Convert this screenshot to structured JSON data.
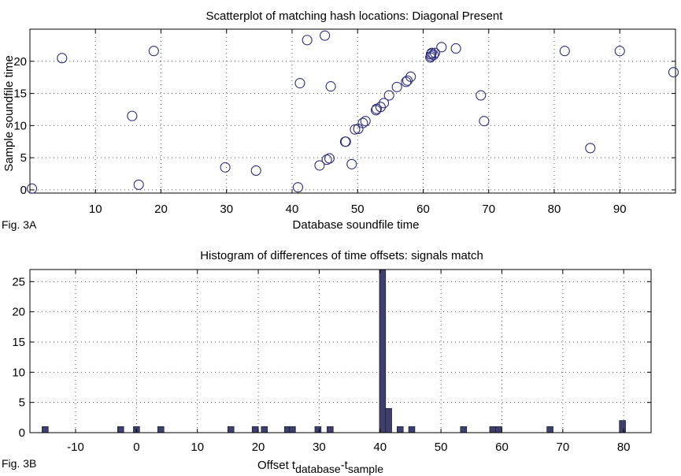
{
  "figure": {
    "scatter_fig_label": "Fig. 3A",
    "histogram_fig_label": "Fig. 3B"
  },
  "chart_data": [
    {
      "type": "scatter",
      "title": "Scatterplot of matching hash locations:  Diagonal Present",
      "xlabel": "Database soundfile time",
      "ylabel": "Sample soundfile time",
      "xlim": [
        0,
        98.5
      ],
      "ylim": [
        -0.5,
        25
      ],
      "xticks": [
        10,
        20,
        30,
        40,
        50,
        60,
        70,
        80,
        90
      ],
      "yticks": [
        0,
        5,
        10,
        15,
        20
      ],
      "grid": true,
      "marker": "open-circle",
      "color": "#2b2b7a",
      "x": [
        0.3,
        4.9,
        15.6,
        16.6,
        18.9,
        29.8,
        34.5,
        40.9,
        41.2,
        42.3,
        44.2,
        45.0,
        45.3,
        45.7,
        45.9,
        48.1,
        48.2,
        49.1,
        49.6,
        50.1,
        50.8,
        51.2,
        52.8,
        52.9,
        53.5,
        54.0,
        54.8,
        56.0,
        57.4,
        57.6,
        58.1,
        61.1,
        61.2,
        61.2,
        61.3,
        61.6,
        61.8,
        62.8,
        65.0,
        68.8,
        69.3,
        81.6,
        85.5,
        90.0,
        98.2
      ],
      "y": [
        0.2,
        20.5,
        11.5,
        0.8,
        21.6,
        3.5,
        3.0,
        0.4,
        16.6,
        23.3,
        3.8,
        24.0,
        4.7,
        4.9,
        16.1,
        7.5,
        7.5,
        4.0,
        9.4,
        9.5,
        10.4,
        10.7,
        12.4,
        12.6,
        12.9,
        13.5,
        14.7,
        16.0,
        16.8,
        17.0,
        17.6,
        20.6,
        20.8,
        21.1,
        21.3,
        21.0,
        21.3,
        22.2,
        22.0,
        14.7,
        10.7,
        21.6,
        6.5,
        21.6,
        18.3
      ]
    },
    {
      "type": "bar",
      "title": "Histogram of differences of time offsets: signals match",
      "xlabel_main": "Offset t",
      "xlabel_sub1": "database",
      "xlabel_sep": "-t",
      "xlabel_sub2": "sample",
      "ylabel": "",
      "xlim": [
        -17.5,
        84.5
      ],
      "ylim": [
        0,
        27
      ],
      "xticks": [
        -10,
        0,
        10,
        20,
        30,
        40,
        50,
        60,
        70,
        80
      ],
      "yticks": [
        0,
        5,
        10,
        15,
        20,
        25
      ],
      "grid": true,
      "color": "#3f3f6b",
      "bin_width": 1,
      "bin_centers": [
        -15.0,
        -2.6,
        0.0,
        4.0,
        15.5,
        19.5,
        21.0,
        24.8,
        25.6,
        29.8,
        31.8,
        40.4,
        41.4,
        43.3,
        45.2,
        53.7,
        58.5,
        59.5,
        67.9,
        79.8
      ],
      "counts": [
        1,
        1,
        1,
        1,
        1,
        1,
        1,
        1,
        1,
        1,
        1,
        27,
        4,
        1,
        1,
        1,
        1,
        1,
        1,
        2
      ]
    }
  ]
}
